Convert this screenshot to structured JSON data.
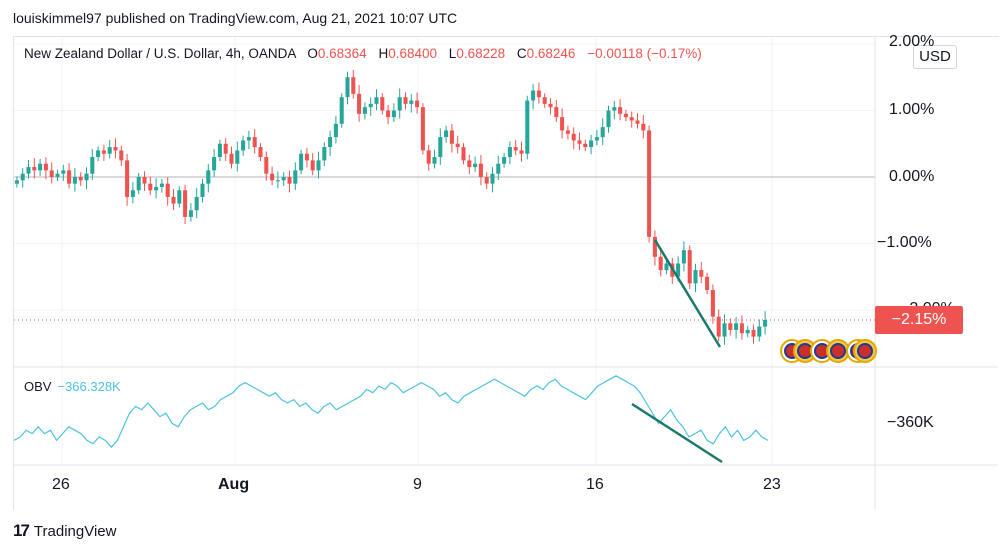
{
  "header": {
    "text": "louiskimmel97 published on TradingView.com, Aug 21, 2021 10:07 UTC"
  },
  "legend": {
    "symbol": "New Zealand Dollar / U.S. Dollar, 4h, OANDA",
    "open_label": "O",
    "open": "0.68364",
    "high_label": "H",
    "high": "0.68400",
    "low_label": "L",
    "low": "0.68228",
    "close_label": "C",
    "close": "0.68246",
    "change": "−0.00118 (−0.17%)"
  },
  "currency_button": "USD",
  "price_tag": "−2.15%",
  "price_axis": [
    "2.00%",
    "1.00%",
    "0.00%",
    "−1.00%",
    "−2.00%"
  ],
  "obv": {
    "label": "OBV",
    "value": "−366.328K",
    "axis_label": "−360K"
  },
  "date_axis": [
    "26",
    "Aug",
    "9",
    "16",
    "23"
  ],
  "footer": {
    "brand": "TradingView",
    "logo": "17"
  },
  "colors": {
    "up": "#26a69a",
    "down": "#ef5350",
    "obv_line": "#4dc3dd",
    "trendline": "#1a7a6a"
  },
  "chart_data": [
    {
      "type": "candlestick",
      "title": "New Zealand Dollar / U.S. Dollar, 4h, OANDA",
      "y_unit": "% change",
      "ylim": [
        -2.8,
        2.0
      ],
      "x_ticks": [
        "26",
        "Aug",
        "9",
        "16",
        "23"
      ],
      "last_change_pct": -2.15,
      "closes": [
        -0.05,
        0.05,
        0.15,
        0.1,
        0.2,
        0.1,
        0.0,
        0.05,
        0.1,
        -0.1,
        0.0,
        -0.05,
        0.05,
        0.3,
        0.4,
        0.35,
        0.45,
        0.4,
        0.25,
        -0.3,
        -0.2,
        0.0,
        -0.1,
        -0.2,
        -0.15,
        -0.1,
        -0.3,
        -0.4,
        -0.2,
        -0.6,
        -0.5,
        -0.3,
        -0.1,
        0.1,
        0.3,
        0.5,
        0.35,
        0.2,
        0.4,
        0.55,
        0.6,
        0.45,
        0.3,
        0.05,
        -0.05,
        -0.05,
        0.0,
        -0.1,
        0.1,
        0.35,
        0.25,
        0.1,
        0.25,
        0.45,
        0.6,
        0.8,
        1.2,
        1.5,
        1.25,
        0.95,
        1.05,
        1.1,
        1.2,
        1.0,
        0.9,
        1.0,
        1.2,
        1.1,
        1.15,
        1.05,
        0.4,
        0.2,
        0.3,
        0.6,
        0.7,
        0.5,
        0.45,
        0.25,
        0.15,
        0.2,
        0.0,
        -0.1,
        0.05,
        0.2,
        0.3,
        0.45,
        0.4,
        0.35,
        1.15,
        1.3,
        1.2,
        1.1,
        1.05,
        0.9,
        0.7,
        0.65,
        0.55,
        0.5,
        0.45,
        0.55,
        0.6,
        0.75,
        1.0,
        1.05,
        0.95,
        0.9,
        0.85,
        0.8,
        0.7,
        -0.9,
        -1.2,
        -1.4,
        -1.3,
        -1.5,
        -1.3,
        -1.1,
        -1.6,
        -1.4,
        -1.5,
        -1.7,
        -2.1,
        -2.4,
        -2.2,
        -2.3,
        -2.2,
        -2.35,
        -2.3,
        -2.4,
        -2.25,
        -2.15
      ]
    },
    {
      "type": "line",
      "title": "OBV",
      "y_unit": "K",
      "last_value": -366.328,
      "values": [
        -366,
        -365,
        -363,
        -364,
        -362,
        -364,
        -363,
        -366,
        -364,
        -362,
        -363,
        -364,
        -366,
        -367,
        -365,
        -366,
        -368,
        -366,
        -362,
        -358,
        -356,
        -357,
        -355,
        -357,
        -359,
        -358,
        -361,
        -362,
        -359,
        -357,
        -356,
        -355,
        -357,
        -356,
        -354,
        -353,
        -352,
        -350,
        -349,
        -350,
        -351,
        -352,
        -353,
        -352,
        -354,
        -355,
        -354,
        -356,
        -355,
        -357,
        -358,
        -356,
        -355,
        -357,
        -356,
        -355,
        -354,
        -353,
        -351,
        -352,
        -350,
        -351,
        -349,
        -350,
        -352,
        -351,
        -350,
        -349,
        -350,
        -351,
        -353,
        -352,
        -354,
        -355,
        -353,
        -352,
        -351,
        -350,
        -349,
        -348,
        -349,
        -350,
        -351,
        -352,
        -353,
        -351,
        -350,
        -351,
        -349,
        -348,
        -350,
        -351,
        -352,
        -353,
        -354,
        -352,
        -350,
        -349,
        -348,
        -347,
        -348,
        -349,
        -350,
        -352,
        -355,
        -358,
        -361,
        -359,
        -357,
        -360,
        -362,
        -365,
        -364,
        -363,
        -366,
        -367,
        -364,
        -362,
        -365,
        -363,
        -366,
        -365,
        -363,
        -365,
        -366
      ]
    }
  ]
}
